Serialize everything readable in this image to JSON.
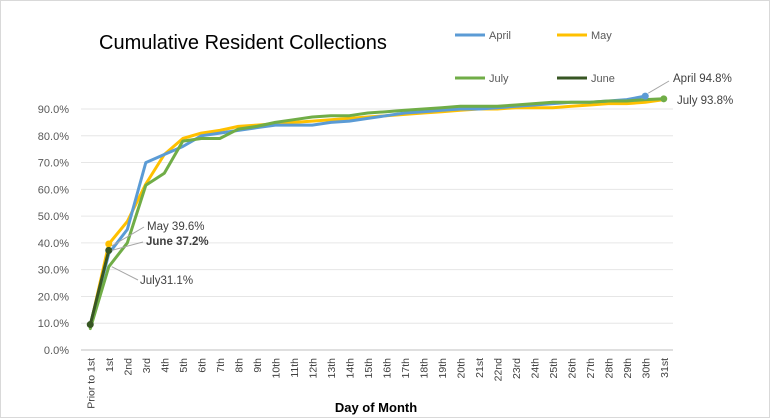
{
  "chart_data": {
    "type": "line",
    "title": "Cumulative Resident Collections",
    "xlabel": "Day of Month",
    "ylabel": "",
    "ylim": [
      0,
      90
    ],
    "y_ticks": [
      "0.0%",
      "10.0%",
      "20.0%",
      "30.0%",
      "40.0%",
      "50.0%",
      "60.0%",
      "70.0%",
      "80.0%",
      "90.0%"
    ],
    "grid": true,
    "categories": [
      "Prior to 1st",
      "1st",
      "2nd",
      "3rd",
      "4th",
      "5th",
      "6th",
      "7th",
      "8th",
      "9th",
      "10th",
      "11th",
      "12th",
      "13th",
      "14th",
      "15th",
      "16th",
      "17th",
      "18th",
      "19th",
      "20th",
      "21st",
      "22nd",
      "23rd",
      "24th",
      "25th",
      "26th",
      "27th",
      "28th",
      "29th",
      "30th",
      "31st"
    ],
    "series": [
      {
        "name": "April",
        "color": "#5b9bd5",
        "values": [
          9.5,
          36,
          45,
          70,
          73,
          76,
          80,
          81,
          82,
          83,
          84,
          84,
          84,
          85,
          85.5,
          86.5,
          87.5,
          88.5,
          89,
          89.5,
          90,
          90,
          90.5,
          91,
          91.5,
          92,
          92.5,
          92.5,
          93,
          93.5,
          94.8,
          null
        ]
      },
      {
        "name": "May",
        "color": "#ffc000",
        "values": [
          9,
          39.6,
          48,
          62,
          73,
          79,
          81,
          82,
          83.5,
          84,
          84.5,
          85,
          85.5,
          86,
          86.5,
          87,
          87.5,
          88,
          88.5,
          89,
          89.5,
          90,
          90,
          90.5,
          90.5,
          90.5,
          91,
          91.5,
          92,
          92,
          92.5,
          93.5
        ]
      },
      {
        "name": "June",
        "color": "#375623",
        "values": [
          9.5,
          37.2,
          null,
          null,
          null,
          null,
          null,
          null,
          null,
          null,
          null,
          null,
          null,
          null,
          null,
          null,
          null,
          null,
          null,
          null,
          null,
          null,
          null,
          null,
          null,
          null,
          null,
          null,
          null,
          null,
          null,
          null
        ]
      },
      {
        "name": "July",
        "color": "#70ad47",
        "values": [
          8,
          31.1,
          40,
          61.5,
          66,
          78,
          79,
          79,
          82.5,
          83.5,
          85,
          86,
          87,
          87.5,
          87.5,
          88.5,
          89,
          89.5,
          90,
          90.5,
          91,
          91,
          91,
          91.5,
          92,
          92.5,
          92.5,
          92.5,
          93,
          93,
          93.5,
          93.8
        ]
      }
    ],
    "legend": {
      "placement": "top-right",
      "items": [
        "April",
        "May",
        "July",
        "June"
      ]
    },
    "annotations": [
      {
        "text": "May 39.6%",
        "series": "May"
      },
      {
        "text": "June 37.2%",
        "series": "June",
        "bold": true
      },
      {
        "text": "July31.1%",
        "series": "July"
      },
      {
        "text": "April 94.8%",
        "series": "April"
      },
      {
        "text": "July 93.8%",
        "series": "July"
      }
    ]
  }
}
